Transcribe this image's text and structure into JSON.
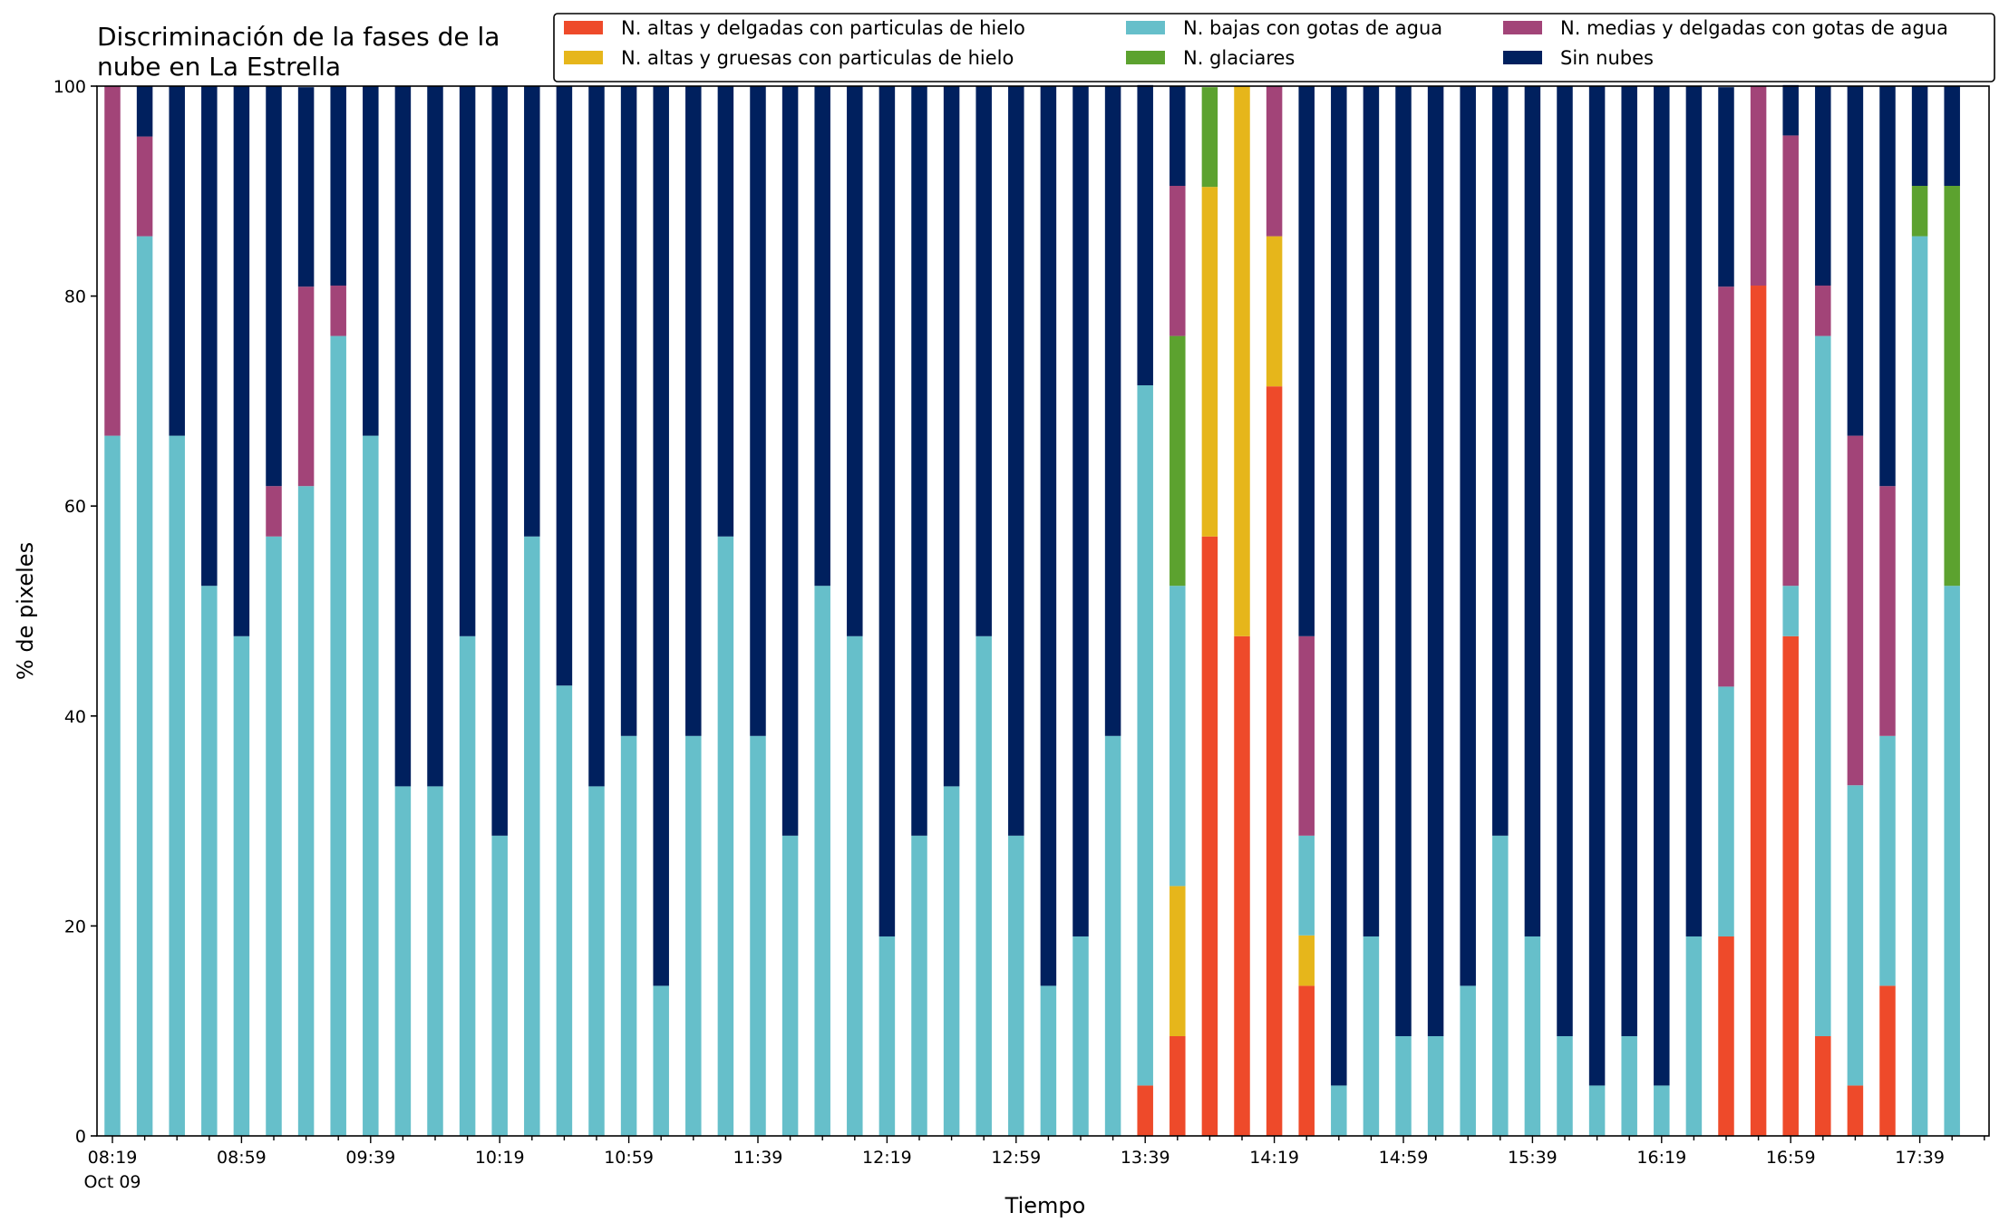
{
  "chart_data": {
    "type": "bar",
    "stacked": true,
    "title_lines": [
      "Discriminación de la fases de la",
      "nube en La Estrella"
    ],
    "xlabel": "Tiempo",
    "ylabel": "% de pixeles",
    "ylim": [
      0,
      100
    ],
    "yticks": [
      "0",
      "20",
      "40",
      "60",
      "80",
      "100"
    ],
    "grid": false,
    "legend_position": "top-right",
    "x_tick_labels": [
      "08:19",
      "08:59",
      "09:39",
      "10:19",
      "10:59",
      "11:39",
      "12:19",
      "12:59",
      "13:39",
      "14:19",
      "14:59",
      "15:39",
      "16:19",
      "16:59",
      "17:39"
    ],
    "x_date_label": "Oct 09",
    "x": [
      "08:19",
      "08:29",
      "08:39",
      "08:49",
      "08:59",
      "09:09",
      "09:19",
      "09:29",
      "09:39",
      "09:49",
      "09:59",
      "10:09",
      "10:19",
      "10:29",
      "10:39",
      "10:49",
      "10:59",
      "11:09",
      "11:19",
      "11:29",
      "11:39",
      "11:49",
      "11:59",
      "12:09",
      "12:19",
      "12:29",
      "12:39",
      "12:49",
      "12:59",
      "13:09",
      "13:19",
      "13:29",
      "13:39",
      "13:49",
      "13:59",
      "14:09",
      "14:19",
      "14:29",
      "14:39",
      "14:49",
      "14:59",
      "15:09",
      "15:19",
      "15:29",
      "15:39",
      "15:49",
      "15:59",
      "16:09",
      "16:19",
      "16:29",
      "16:39",
      "16:49",
      "16:59",
      "17:09",
      "17:19",
      "17:29",
      "17:39",
      "17:49"
    ],
    "series": [
      {
        "name": "N. altas y delgadas con particulas de hielo",
        "color": "#ee4a2a",
        "values": [
          0,
          0,
          0,
          0,
          0,
          0,
          0,
          0,
          0,
          0,
          0,
          0,
          0,
          0,
          0,
          0,
          0,
          0,
          0,
          0,
          0,
          0,
          0,
          0,
          0,
          0,
          0,
          0,
          0,
          0,
          0,
          0,
          4.8,
          9.5,
          57.1,
          47.6,
          71.4,
          14.3,
          0,
          0,
          0,
          0,
          0,
          0,
          0,
          0,
          0,
          0,
          0,
          0,
          19,
          81,
          47.6,
          9.5,
          4.8,
          14.3,
          0,
          0
        ]
      },
      {
        "name": "N. altas y gruesas con particulas de hielo",
        "color": "#e6b61b",
        "values": [
          0,
          0,
          0,
          0,
          0,
          0,
          0,
          0,
          0,
          0,
          0,
          0,
          0,
          0,
          0,
          0,
          0,
          0,
          0,
          0,
          0,
          0,
          0,
          0,
          0,
          0,
          0,
          0,
          0,
          0,
          0,
          0,
          0,
          14.3,
          33.3,
          52.4,
          14.3,
          4.8,
          0,
          0,
          0,
          0,
          0,
          0,
          0,
          0,
          0,
          0,
          0,
          0,
          0,
          0,
          0,
          0,
          0,
          0,
          0,
          0
        ]
      },
      {
        "name": "N. bajas con gotas de agua",
        "color": "#66bfca",
        "values": [
          66.7,
          85.7,
          66.7,
          52.4,
          47.6,
          57.1,
          61.9,
          76.2,
          66.7,
          33.3,
          33.3,
          47.6,
          28.6,
          57.1,
          42.9,
          33.3,
          38.1,
          14.3,
          38.1,
          57.1,
          38.1,
          28.6,
          52.4,
          47.6,
          19,
          28.6,
          33.3,
          47.6,
          28.6,
          14.3,
          19,
          38.1,
          66.7,
          28.6,
          0,
          0,
          0,
          9.5,
          4.8,
          19,
          9.5,
          9.5,
          14.3,
          28.6,
          19,
          9.5,
          4.8,
          9.5,
          4.8,
          19,
          23.8,
          0,
          4.8,
          66.7,
          28.6,
          23.8,
          85.7,
          52.4
        ]
      },
      {
        "name": "N. glaciares",
        "color": "#5ca22f",
        "values": [
          0,
          0,
          0,
          0,
          0,
          0,
          0,
          0,
          0,
          0,
          0,
          0,
          0,
          0,
          0,
          0,
          0,
          0,
          0,
          0,
          0,
          0,
          0,
          0,
          0,
          0,
          0,
          0,
          0,
          0,
          0,
          0,
          0,
          23.8,
          9.5,
          0,
          0,
          0,
          0,
          0,
          0,
          0,
          0,
          0,
          0,
          0,
          0,
          0,
          0,
          0,
          0,
          0,
          0,
          0,
          0,
          0,
          4.8,
          38.1
        ]
      },
      {
        "name": "N. medias y delgadas con gotas de agua",
        "color": "#a24478",
        "values": [
          33.3,
          9.5,
          0,
          0,
          0,
          4.8,
          19,
          4.8,
          0,
          0,
          0,
          0,
          0,
          0,
          0,
          0,
          0,
          0,
          0,
          0,
          0,
          0,
          0,
          0,
          0,
          0,
          0,
          0,
          0,
          0,
          0,
          0,
          0,
          14.3,
          0,
          0,
          14.3,
          19,
          0,
          0,
          0,
          0,
          0,
          0,
          0,
          0,
          0,
          0,
          0,
          0,
          38.1,
          19,
          42.9,
          4.8,
          33.3,
          23.8,
          0,
          0
        ]
      },
      {
        "name": "Sin nubes",
        "color": "#00205e",
        "values": [
          0,
          4.8,
          33.3,
          47.6,
          52.4,
          38.1,
          19,
          19,
          33.3,
          66.7,
          66.7,
          52.4,
          71.4,
          42.9,
          57.1,
          66.7,
          61.9,
          85.7,
          61.9,
          42.9,
          61.9,
          71.4,
          47.6,
          52.4,
          81,
          71.4,
          66.7,
          52.4,
          71.4,
          85.7,
          81,
          61.9,
          28.6,
          9.5,
          0,
          0,
          0,
          52.4,
          95.2,
          81,
          90.5,
          90.5,
          85.7,
          71.4,
          81,
          90.5,
          95.2,
          90.5,
          95.2,
          81,
          19,
          0,
          4.8,
          19,
          33.3,
          38.1,
          9.5,
          9.5
        ]
      }
    ]
  }
}
